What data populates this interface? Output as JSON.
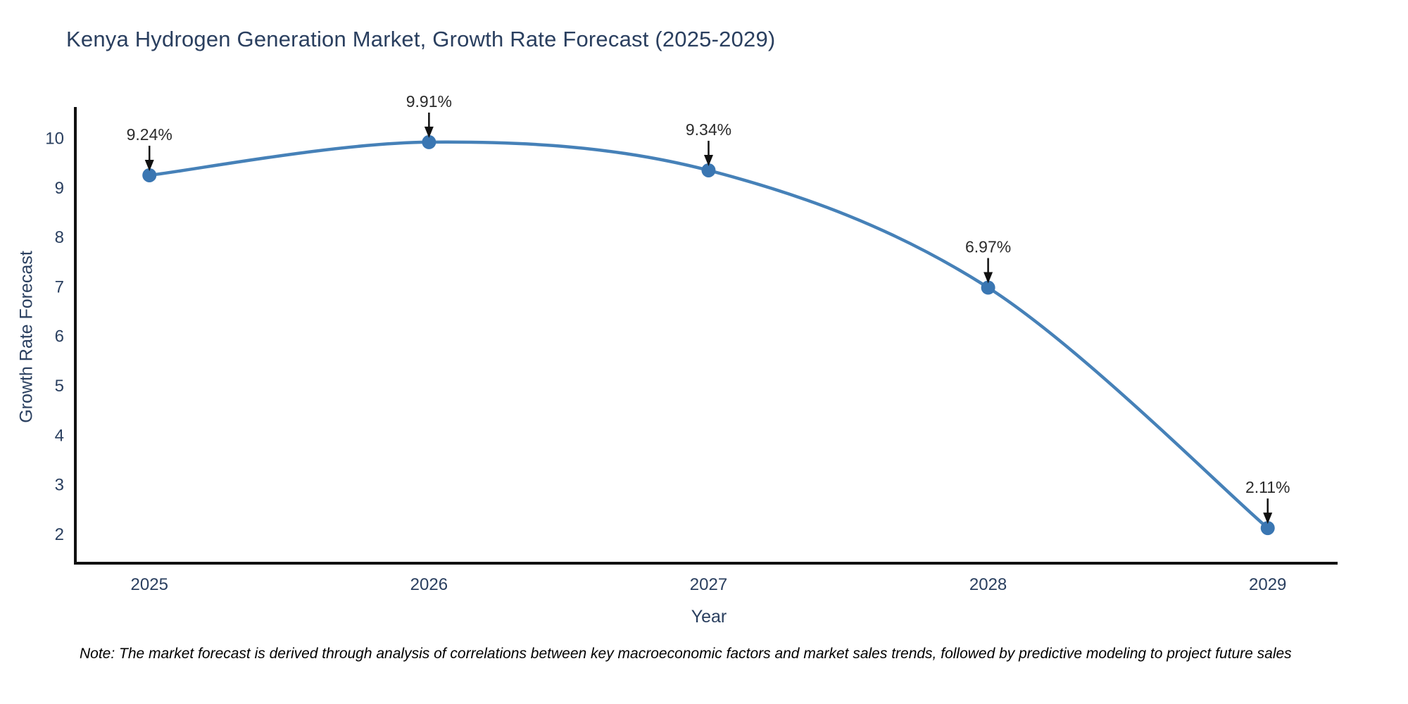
{
  "page": {
    "note": "Note: The market forecast is derived through analysis of correlations between key macroeconomic factors and market sales trends, followed by predictive modeling to project future sales"
  },
  "chart_data": {
    "type": "line",
    "title": "Kenya Hydrogen Generation Market, Growth Rate Forecast (2025-2029)",
    "xlabel": "Year",
    "ylabel": "Growth Rate Forecast",
    "x": [
      2025,
      2026,
      2027,
      2028,
      2029
    ],
    "series": [
      {
        "name": "Growth Rate Forecast",
        "values": [
          9.24,
          9.91,
          9.34,
          6.97,
          2.11
        ]
      }
    ],
    "point_labels": [
      "9.24%",
      "9.91%",
      "9.34%",
      "6.97%",
      "2.11%"
    ],
    "xticks": [
      2025,
      2026,
      2027,
      2028,
      2029
    ],
    "yticks": [
      2,
      3,
      4,
      5,
      6,
      7,
      8,
      9,
      10
    ],
    "xlim": [
      2024.735,
      2029.25
    ],
    "ylim": [
      1.4,
      10.62
    ],
    "grid": false,
    "legend_position": "none",
    "curve": "spline",
    "annotations_have_arrows": true,
    "colors": {
      "line": "#4681b8",
      "marker": "#3a76b2",
      "axis": "#111111",
      "tick_label": "#2a3f5f",
      "axis_title": "#2a3f5f",
      "annotation_text": "#2b2b2b",
      "annotation_arrow": "#111111",
      "background": "#ffffff"
    }
  }
}
